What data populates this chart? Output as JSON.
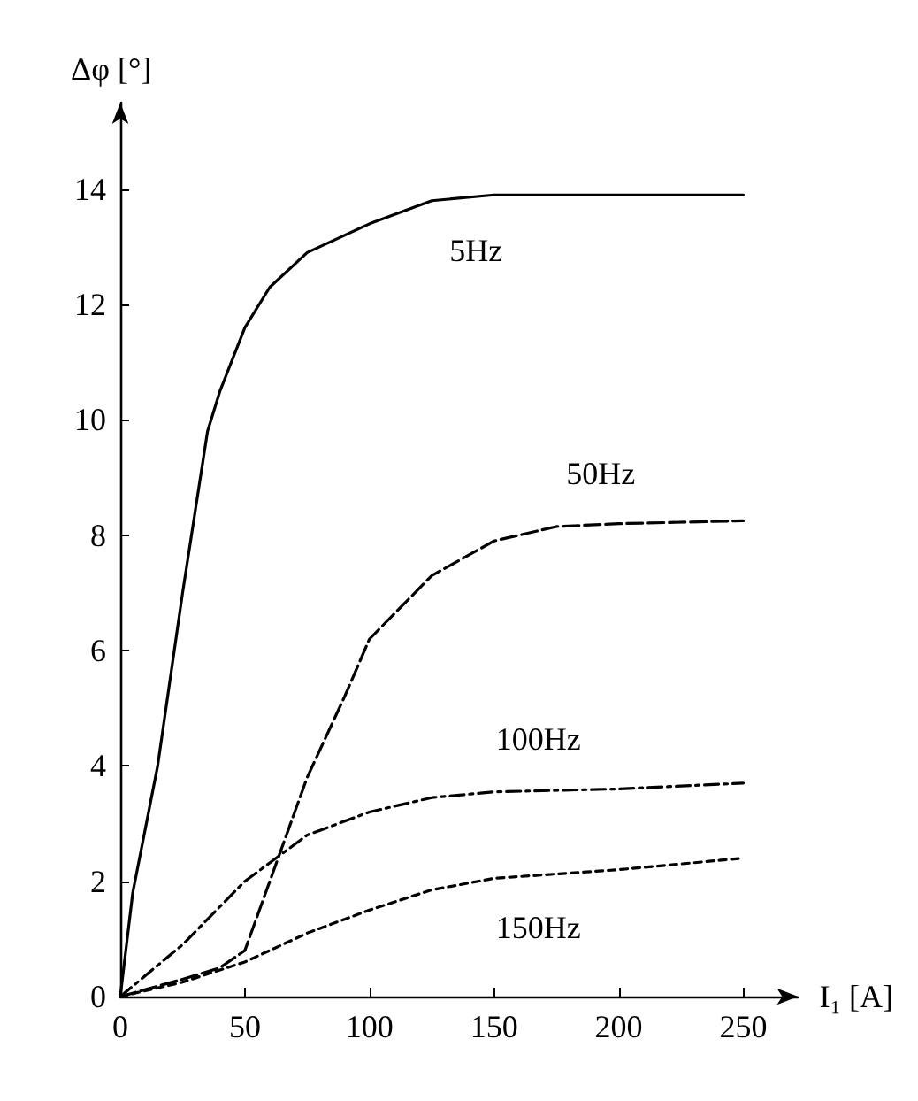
{
  "chart_data": {
    "type": "line",
    "xlabel": "I₁ [A]",
    "ylabel": "Δφ [°]",
    "xlim": [
      0,
      272
    ],
    "ylim": [
      0,
      15.5
    ],
    "xticks": [
      0,
      50,
      100,
      150,
      200,
      250
    ],
    "yticks": [
      0,
      2,
      4,
      6,
      8,
      10,
      12,
      14
    ],
    "grid": false,
    "marker": "none",
    "series": [
      {
        "name": "5Hz",
        "color": "#000000",
        "line_style": "solid",
        "x": [
          0,
          5,
          15,
          25,
          35,
          40,
          50,
          60,
          75,
          100,
          125,
          150,
          250
        ],
        "values": [
          0,
          1.8,
          4,
          7,
          9.8,
          10.5,
          11.6,
          12.3,
          12.9,
          13.4,
          13.8,
          13.9,
          13.9
        ]
      },
      {
        "name": "50Hz",
        "color": "#000000",
        "line_style": "dashed",
        "x": [
          0,
          25,
          40,
          50,
          60,
          75,
          90,
          100,
          125,
          150,
          175,
          200,
          250
        ],
        "values": [
          0,
          0.3,
          0.5,
          0.8,
          2,
          3.8,
          5.2,
          6.2,
          7.3,
          7.9,
          8.15,
          8.2,
          8.25
        ]
      },
      {
        "name": "100Hz",
        "color": "#000000",
        "line_style": "dashdot",
        "x": [
          0,
          25,
          50,
          75,
          100,
          125,
          150,
          200,
          250
        ],
        "values": [
          0,
          0.9,
          2,
          2.8,
          3.2,
          3.45,
          3.55,
          3.6,
          3.7
        ]
      },
      {
        "name": "150Hz",
        "color": "#000000",
        "line_style": "dotted",
        "x": [
          0,
          25,
          50,
          75,
          100,
          125,
          150,
          200,
          250
        ],
        "values": [
          0,
          0.25,
          0.6,
          1.1,
          1.5,
          1.85,
          2.05,
          2.2,
          2.4
        ]
      }
    ]
  }
}
